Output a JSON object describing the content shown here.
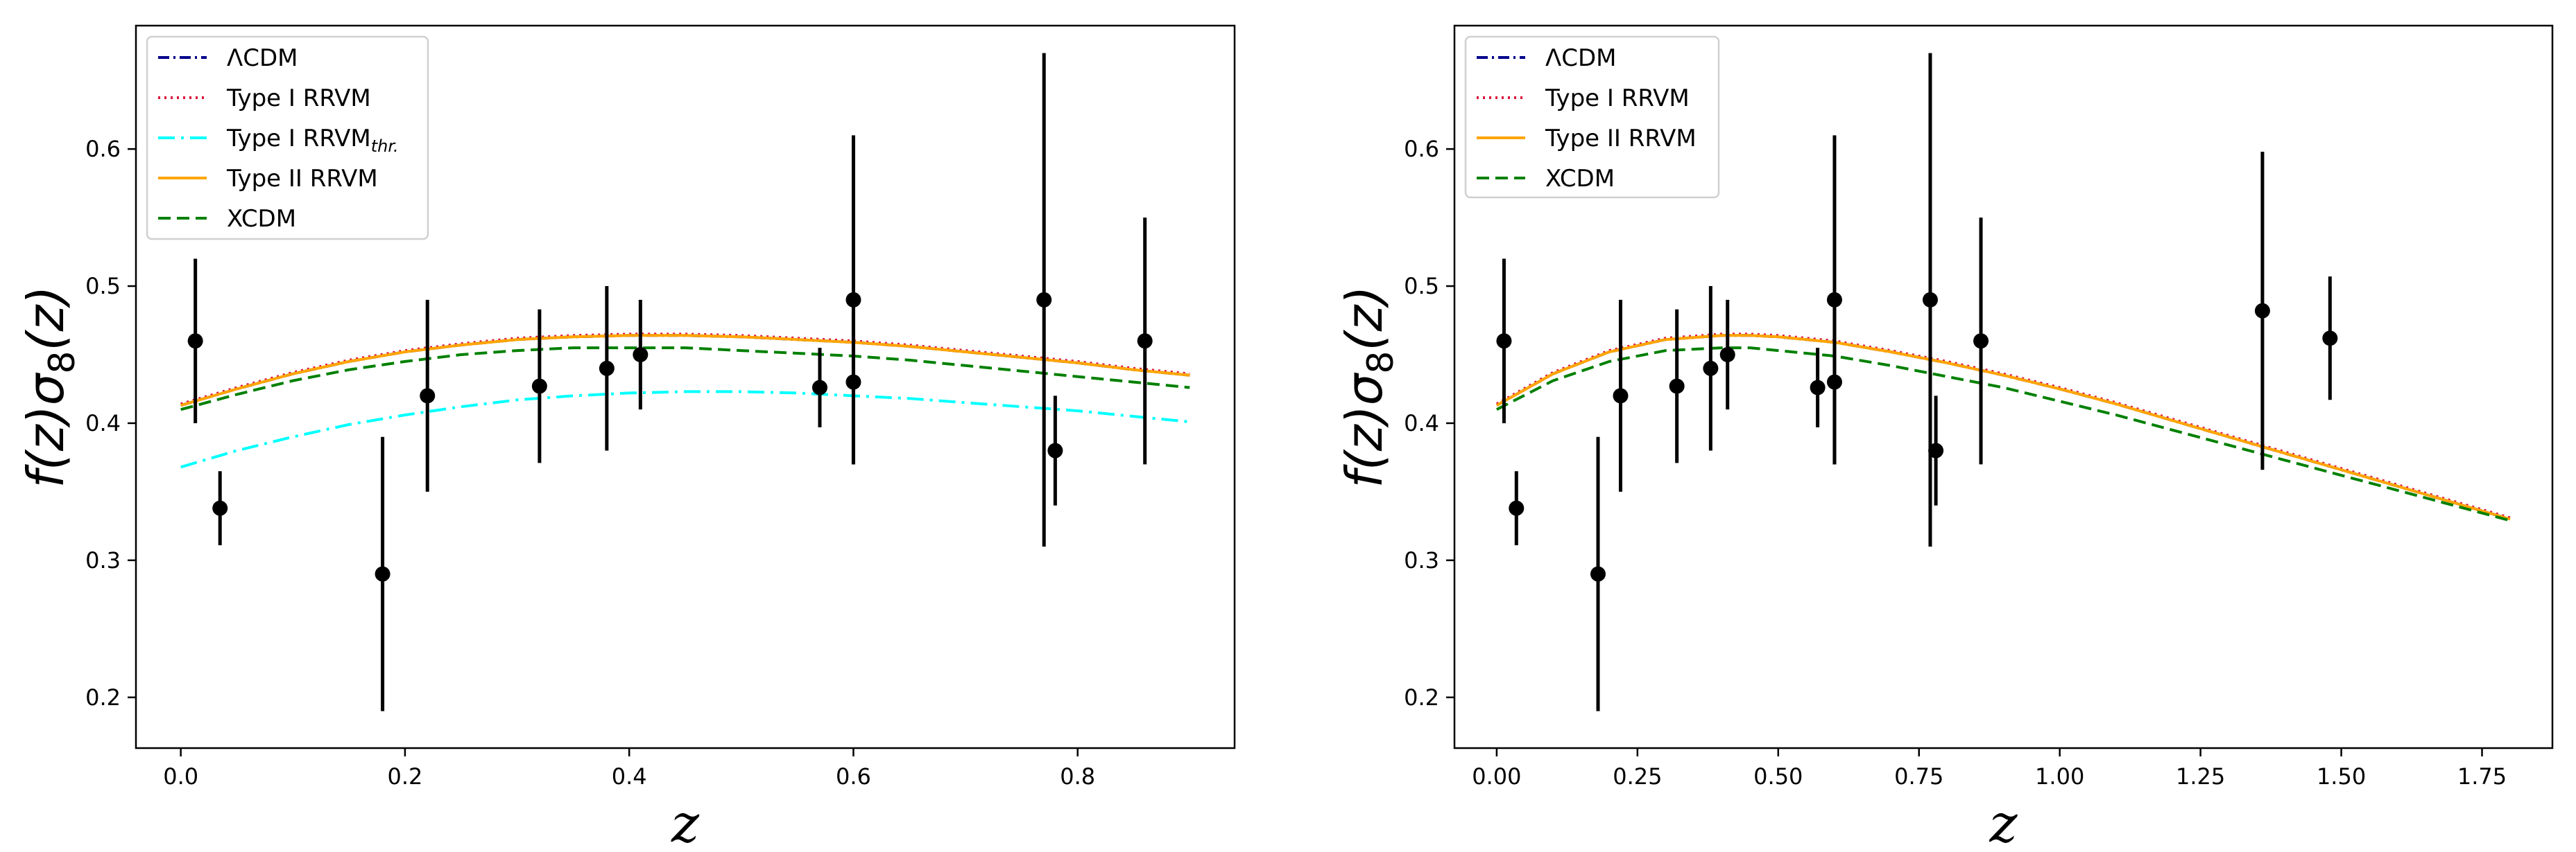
{
  "figure": {
    "panels": [
      {
        "chart_data": {
          "type": "line",
          "xlabel": "z",
          "ylabel": "f(z)σ8(z)",
          "xlim": [
            -0.04,
            0.94
          ],
          "ylim": [
            0.163,
            0.69
          ],
          "xticks": [
            0.0,
            0.2,
            0.4,
            0.6,
            0.8
          ],
          "xtick_labels": [
            "0.0",
            "0.2",
            "0.4",
            "0.6",
            "0.8"
          ],
          "yticks": [
            0.2,
            0.3,
            0.4,
            0.5,
            0.6
          ],
          "ytick_labels": [
            "0.2",
            "0.3",
            "0.4",
            "0.5",
            "0.6"
          ],
          "grid": false,
          "legend_position": "top-left",
          "series": [
            {
              "name": "ΛCDM",
              "color": "#00008b",
              "dash": "dashdot",
              "x": [
                0.0,
                0.05,
                0.1,
                0.15,
                0.2,
                0.25,
                0.3,
                0.35,
                0.4,
                0.45,
                0.5,
                0.55,
                0.6,
                0.65,
                0.7,
                0.75,
                0.8,
                0.85,
                0.9
              ],
              "y": [
                0.413,
                0.425,
                0.436,
                0.445,
                0.452,
                0.457,
                0.461,
                0.463,
                0.464,
                0.464,
                0.463,
                0.461,
                0.459,
                0.456,
                0.452,
                0.448,
                0.444,
                0.439,
                0.435
              ]
            },
            {
              "name": "Type I RRVM",
              "color": "#dc143c",
              "dash": "dotted",
              "x": [
                0.0,
                0.05,
                0.1,
                0.15,
                0.2,
                0.25,
                0.3,
                0.35,
                0.4,
                0.45,
                0.5,
                0.55,
                0.6,
                0.65,
                0.7,
                0.75,
                0.8,
                0.85,
                0.9
              ],
              "y": [
                0.414,
                0.426,
                0.437,
                0.446,
                0.453,
                0.458,
                0.462,
                0.464,
                0.465,
                0.465,
                0.464,
                0.462,
                0.46,
                0.457,
                0.453,
                0.449,
                0.445,
                0.44,
                0.436
              ]
            },
            {
              "name": "Type I RRVMthr.",
              "color": "#00ffff",
              "dash": "dashdotlong",
              "x": [
                0.0,
                0.05,
                0.1,
                0.15,
                0.2,
                0.25,
                0.3,
                0.35,
                0.4,
                0.45,
                0.5,
                0.55,
                0.6,
                0.65,
                0.7,
                0.75,
                0.8,
                0.85,
                0.9
              ],
              "y": [
                0.368,
                0.38,
                0.39,
                0.399,
                0.406,
                0.412,
                0.417,
                0.42,
                0.422,
                0.423,
                0.423,
                0.422,
                0.42,
                0.418,
                0.415,
                0.412,
                0.409,
                0.405,
                0.401
              ]
            },
            {
              "name": "Type II RRVM",
              "color": "#ffa500",
              "dash": "solid",
              "x": [
                0.0,
                0.05,
                0.1,
                0.15,
                0.2,
                0.25,
                0.3,
                0.35,
                0.4,
                0.45,
                0.5,
                0.55,
                0.6,
                0.65,
                0.7,
                0.75,
                0.8,
                0.85,
                0.9
              ],
              "y": [
                0.413,
                0.425,
                0.436,
                0.445,
                0.452,
                0.457,
                0.461,
                0.463,
                0.464,
                0.464,
                0.463,
                0.461,
                0.459,
                0.456,
                0.452,
                0.448,
                0.444,
                0.439,
                0.435
              ]
            },
            {
              "name": "XCDM",
              "color": "#008000",
              "dash": "dashed",
              "x": [
                0.0,
                0.05,
                0.1,
                0.15,
                0.2,
                0.25,
                0.3,
                0.35,
                0.4,
                0.45,
                0.5,
                0.55,
                0.6,
                0.65,
                0.7,
                0.75,
                0.8,
                0.85,
                0.9
              ],
              "y": [
                0.41,
                0.421,
                0.431,
                0.439,
                0.445,
                0.45,
                0.453,
                0.455,
                0.455,
                0.455,
                0.453,
                0.451,
                0.449,
                0.446,
                0.442,
                0.438,
                0.434,
                0.43,
                0.426
              ]
            }
          ],
          "errorbar_points": [
            {
              "x": 0.013,
              "y": 0.46,
              "err": 0.06
            },
            {
              "x": 0.035,
              "y": 0.338,
              "err": 0.027
            },
            {
              "x": 0.18,
              "y": 0.29,
              "err": 0.1
            },
            {
              "x": 0.22,
              "y": 0.42,
              "err": 0.07
            },
            {
              "x": 0.32,
              "y": 0.427,
              "err": 0.056
            },
            {
              "x": 0.38,
              "y": 0.44,
              "err": 0.06
            },
            {
              "x": 0.41,
              "y": 0.45,
              "err": 0.04
            },
            {
              "x": 0.57,
              "y": 0.426,
              "err": 0.029
            },
            {
              "x": 0.6,
              "y": 0.43,
              "err": 0.06
            },
            {
              "x": 0.6,
              "y": 0.49,
              "err": 0.12
            },
            {
              "x": 0.77,
              "y": 0.49,
              "err": 0.18
            },
            {
              "x": 0.78,
              "y": 0.38,
              "err": 0.04
            },
            {
              "x": 0.86,
              "y": 0.46,
              "err": 0.09
            }
          ]
        }
      },
      {
        "chart_data": {
          "type": "line",
          "xlabel": "z",
          "ylabel": "f(z)σ8(z)",
          "xlim": [
            -0.075,
            1.875
          ],
          "ylim": [
            0.163,
            0.69
          ],
          "xticks": [
            0.0,
            0.25,
            0.5,
            0.75,
            1.0,
            1.25,
            1.5,
            1.75
          ],
          "xtick_labels": [
            "0.00",
            "0.25",
            "0.50",
            "0.75",
            "1.00",
            "1.25",
            "1.50",
            "1.75"
          ],
          "yticks": [
            0.2,
            0.3,
            0.4,
            0.5,
            0.6
          ],
          "ytick_labels": [
            "0.2",
            "0.3",
            "0.4",
            "0.5",
            "0.6"
          ],
          "grid": false,
          "legend_position": "top-left",
          "series": [
            {
              "name": "ΛCDM",
              "color": "#00008b",
              "dash": "dashdot",
              "x": [
                0.0,
                0.1,
                0.2,
                0.3,
                0.4,
                0.45,
                0.5,
                0.6,
                0.7,
                0.8,
                0.9,
                1.0,
                1.1,
                1.2,
                1.3,
                1.4,
                1.5,
                1.6,
                1.7,
                1.8
              ],
              "y": [
                0.413,
                0.436,
                0.452,
                0.461,
                0.464,
                0.464,
                0.463,
                0.459,
                0.452,
                0.444,
                0.435,
                0.425,
                0.414,
                0.402,
                0.39,
                0.378,
                0.366,
                0.354,
                0.342,
                0.33
              ]
            },
            {
              "name": "Type I RRVM",
              "color": "#dc143c",
              "dash": "dotted",
              "x": [
                0.0,
                0.1,
                0.2,
                0.3,
                0.4,
                0.45,
                0.5,
                0.6,
                0.7,
                0.8,
                0.9,
                1.0,
                1.1,
                1.2,
                1.3,
                1.4,
                1.5,
                1.6,
                1.7,
                1.8
              ],
              "y": [
                0.414,
                0.437,
                0.453,
                0.462,
                0.465,
                0.465,
                0.464,
                0.46,
                0.453,
                0.445,
                0.436,
                0.426,
                0.415,
                0.403,
                0.391,
                0.379,
                0.367,
                0.355,
                0.343,
                0.331
              ]
            },
            {
              "name": "Type II RRVM",
              "color": "#ffa500",
              "dash": "solid",
              "x": [
                0.0,
                0.1,
                0.2,
                0.3,
                0.4,
                0.45,
                0.5,
                0.6,
                0.7,
                0.8,
                0.9,
                1.0,
                1.1,
                1.2,
                1.3,
                1.4,
                1.5,
                1.6,
                1.7,
                1.8
              ],
              "y": [
                0.413,
                0.436,
                0.452,
                0.461,
                0.464,
                0.464,
                0.463,
                0.459,
                0.452,
                0.444,
                0.435,
                0.425,
                0.414,
                0.402,
                0.39,
                0.378,
                0.366,
                0.354,
                0.342,
                0.33
              ]
            },
            {
              "name": "XCDM",
              "color": "#008000",
              "dash": "dashed",
              "x": [
                0.0,
                0.1,
                0.2,
                0.3,
                0.4,
                0.45,
                0.5,
                0.6,
                0.7,
                0.8,
                0.9,
                1.0,
                1.1,
                1.2,
                1.3,
                1.4,
                1.5,
                1.6,
                1.7,
                1.8
              ],
              "y": [
                0.41,
                0.431,
                0.445,
                0.453,
                0.455,
                0.455,
                0.453,
                0.449,
                0.442,
                0.434,
                0.426,
                0.416,
                0.406,
                0.395,
                0.384,
                0.373,
                0.362,
                0.351,
                0.34,
                0.329
              ]
            }
          ],
          "errorbar_points": [
            {
              "x": 0.013,
              "y": 0.46,
              "err": 0.06
            },
            {
              "x": 0.035,
              "y": 0.338,
              "err": 0.027
            },
            {
              "x": 0.18,
              "y": 0.29,
              "err": 0.1
            },
            {
              "x": 0.22,
              "y": 0.42,
              "err": 0.07
            },
            {
              "x": 0.32,
              "y": 0.427,
              "err": 0.056
            },
            {
              "x": 0.38,
              "y": 0.44,
              "err": 0.06
            },
            {
              "x": 0.41,
              "y": 0.45,
              "err": 0.04
            },
            {
              "x": 0.57,
              "y": 0.426,
              "err": 0.029
            },
            {
              "x": 0.6,
              "y": 0.43,
              "err": 0.06
            },
            {
              "x": 0.6,
              "y": 0.49,
              "err": 0.12
            },
            {
              "x": 0.77,
              "y": 0.49,
              "err": 0.18
            },
            {
              "x": 0.78,
              "y": 0.38,
              "err": 0.04
            },
            {
              "x": 0.86,
              "y": 0.46,
              "err": 0.09
            },
            {
              "x": 1.36,
              "y": 0.482,
              "err": 0.116
            },
            {
              "x": 1.48,
              "y": 0.462,
              "err": 0.045
            }
          ]
        }
      }
    ]
  }
}
